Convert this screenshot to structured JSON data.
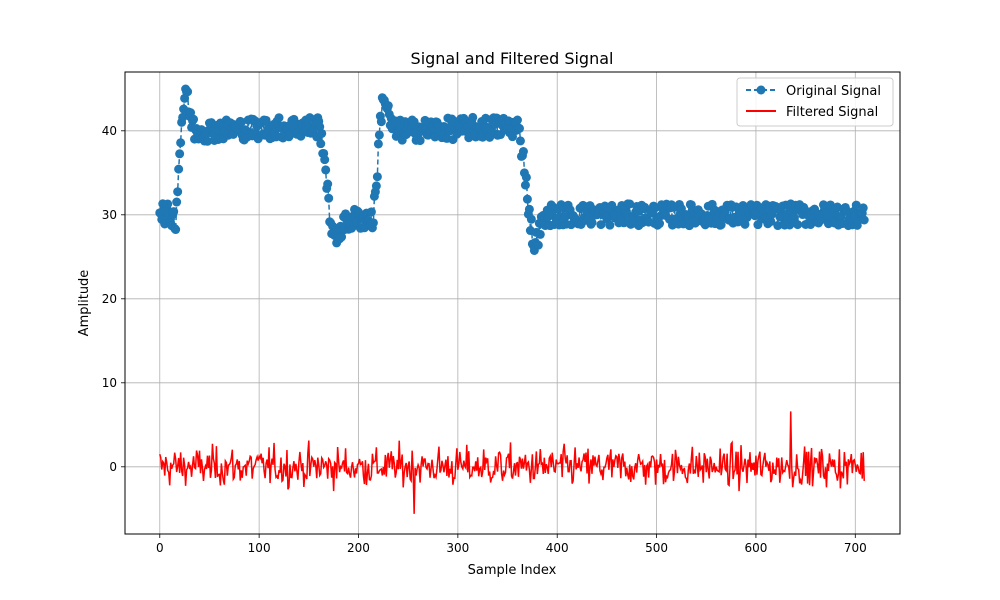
{
  "chart_data": {
    "type": "line",
    "title": "Signal and Filtered Signal",
    "xlabel": "Sample Index",
    "ylabel": "Amplitude",
    "xlim": [
      -35,
      745
    ],
    "ylim": [
      -8,
      47
    ],
    "xticks": [
      0,
      100,
      200,
      300,
      400,
      500,
      600,
      700
    ],
    "yticks": [
      0,
      10,
      20,
      30,
      40
    ],
    "grid": true,
    "legend_position": "top-right",
    "x_range": [
      0,
      709
    ],
    "series": [
      {
        "name": "Original Signal",
        "color": "#1f77b4",
        "style": "dashed line with circle markers",
        "profile": [
          {
            "x": 0,
            "y": 30.5
          },
          {
            "x": 16,
            "y": 29.5
          },
          {
            "x": 18,
            "y": 33.5
          },
          {
            "x": 22,
            "y": 41
          },
          {
            "x": 26,
            "y": 45
          },
          {
            "x": 30,
            "y": 42
          },
          {
            "x": 35,
            "y": 40
          },
          {
            "x": 160,
            "y": 40.5
          },
          {
            "x": 165,
            "y": 38
          },
          {
            "x": 170,
            "y": 31
          },
          {
            "x": 176,
            "y": 26.5
          },
          {
            "x": 182,
            "y": 28.5
          },
          {
            "x": 195,
            "y": 29.5
          },
          {
            "x": 215,
            "y": 29.5
          },
          {
            "x": 218,
            "y": 34
          },
          {
            "x": 222,
            "y": 41
          },
          {
            "x": 225,
            "y": 44.5
          },
          {
            "x": 230,
            "y": 42
          },
          {
            "x": 235,
            "y": 40
          },
          {
            "x": 360,
            "y": 40.5
          },
          {
            "x": 366,
            "y": 37
          },
          {
            "x": 372,
            "y": 30
          },
          {
            "x": 377,
            "y": 26
          },
          {
            "x": 383,
            "y": 28.5
          },
          {
            "x": 392,
            "y": 30
          },
          {
            "x": 709,
            "y": 30
          }
        ],
        "noise_amplitude": 1.3
      },
      {
        "name": "Filtered Signal",
        "color": "#ff0000",
        "style": "solid line",
        "mean": 0,
        "range": [
          -5.6,
          6.6
        ],
        "peak": {
          "x": 635,
          "y": 6.6
        },
        "trough": {
          "x": 256,
          "y": -5.6
        }
      }
    ]
  }
}
